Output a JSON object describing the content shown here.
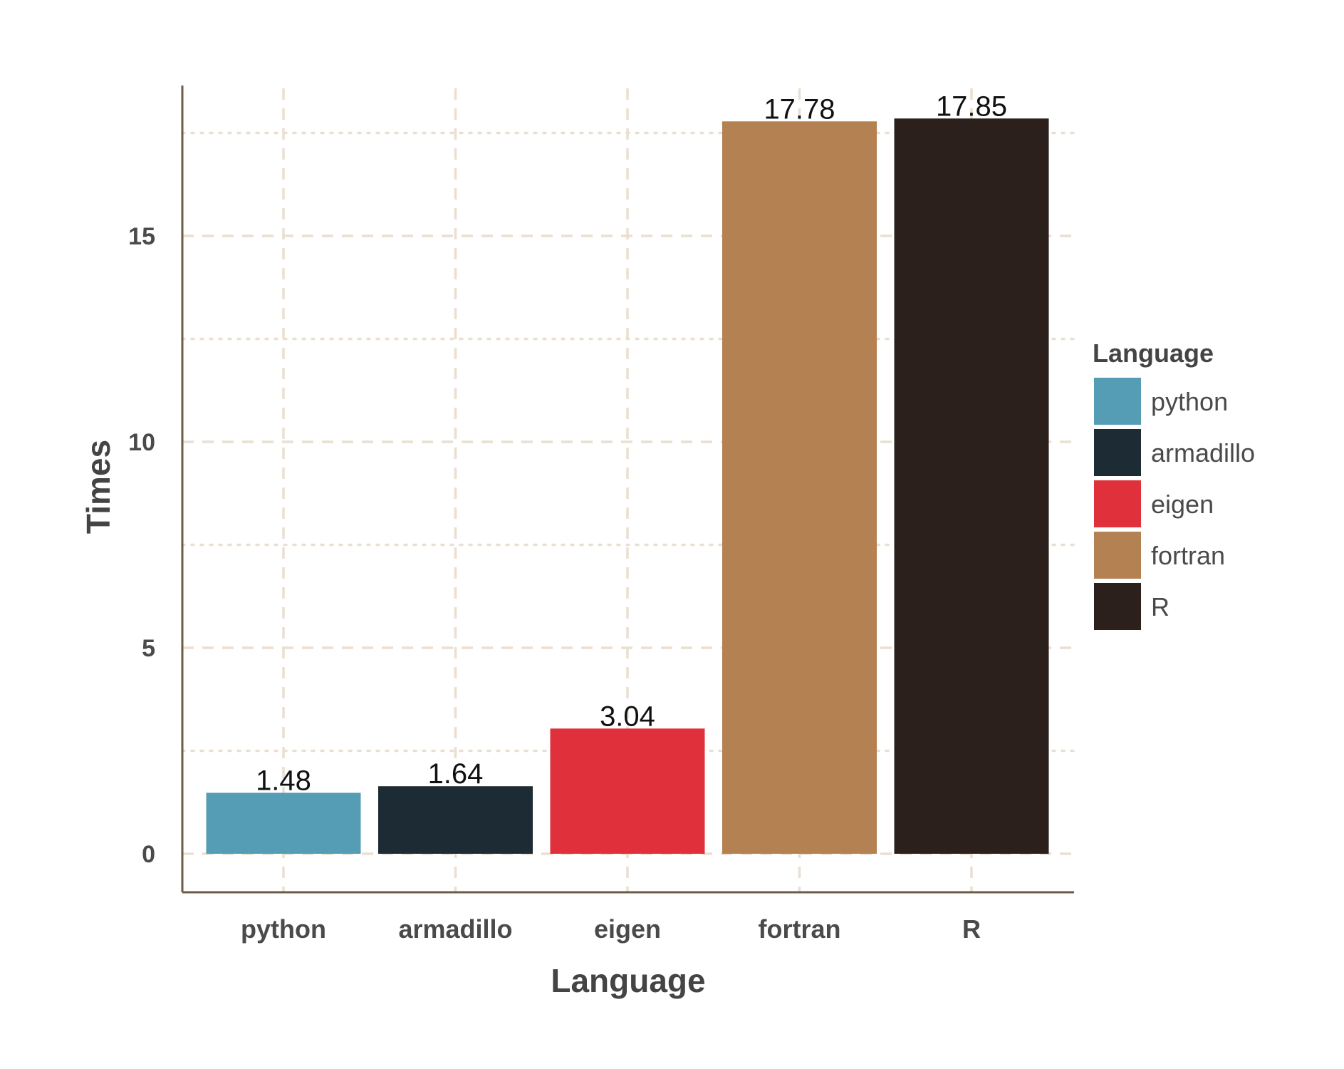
{
  "chart_data": {
    "type": "bar",
    "categories": [
      "python",
      "armadillo",
      "eigen",
      "fortran",
      "R"
    ],
    "values": [
      1.48,
      1.64,
      3.04,
      17.78,
      17.85
    ],
    "data_labels": [
      "1.48",
      "1.64",
      "3.04",
      "17.78",
      "17.85"
    ],
    "colors": [
      "#559db5",
      "#1d2c34",
      "#e0303b",
      "#b38152",
      "#2b201c"
    ],
    "xlabel": "Language",
    "ylabel": "Times",
    "ylim": [
      -0.9,
      18.6
    ],
    "yticks": [
      0,
      5,
      10,
      15
    ],
    "ytick_labels": [
      "0",
      "5",
      "10",
      "15"
    ],
    "grid": true,
    "legend": {
      "title": "Language",
      "placement": "right",
      "entries": [
        "python",
        "armadillo",
        "eigen",
        "fortran",
        "R"
      ]
    },
    "axis_color": "#6e5a45",
    "grid_color": "#eadfd0"
  }
}
